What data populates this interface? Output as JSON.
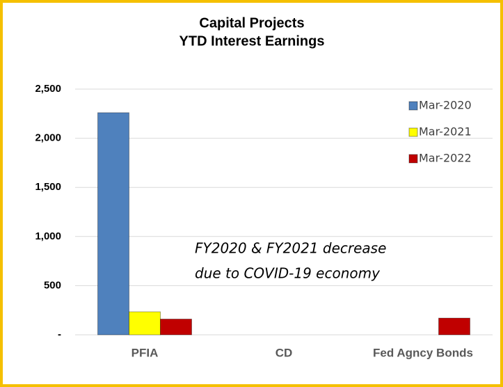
{
  "chart_data": {
    "type": "bar",
    "title": [
      "Capital Projects",
      "YTD Interest Earnings"
    ],
    "categories": [
      "PFIA",
      "CD",
      "Fed Agncy Bonds"
    ],
    "series": [
      {
        "name": "Mar-2020",
        "color": "#4f81bd",
        "values": [
          2260,
          0,
          0
        ]
      },
      {
        "name": "Mar-2021",
        "color": "#ffff00",
        "values": [
          234,
          0,
          0
        ]
      },
      {
        "name": "Mar-2022",
        "color": "#c00000",
        "values": [
          160,
          0,
          170
        ]
      }
    ],
    "ylim": [
      0,
      2500
    ],
    "yticks": [
      {
        "value": 0,
        "label": "-"
      },
      500,
      {
        "value": 1000,
        "label": "1,000"
      },
      {
        "value": 1500,
        "label": "1,500"
      },
      {
        "value": 2000,
        "label": "2,000"
      },
      {
        "value": 2500,
        "label": "2,500"
      }
    ],
    "grid": true,
    "legend": "upper right",
    "annotation": [
      "FY2020 & FY2021 decrease",
      "due to COVID-19 economy"
    ]
  }
}
